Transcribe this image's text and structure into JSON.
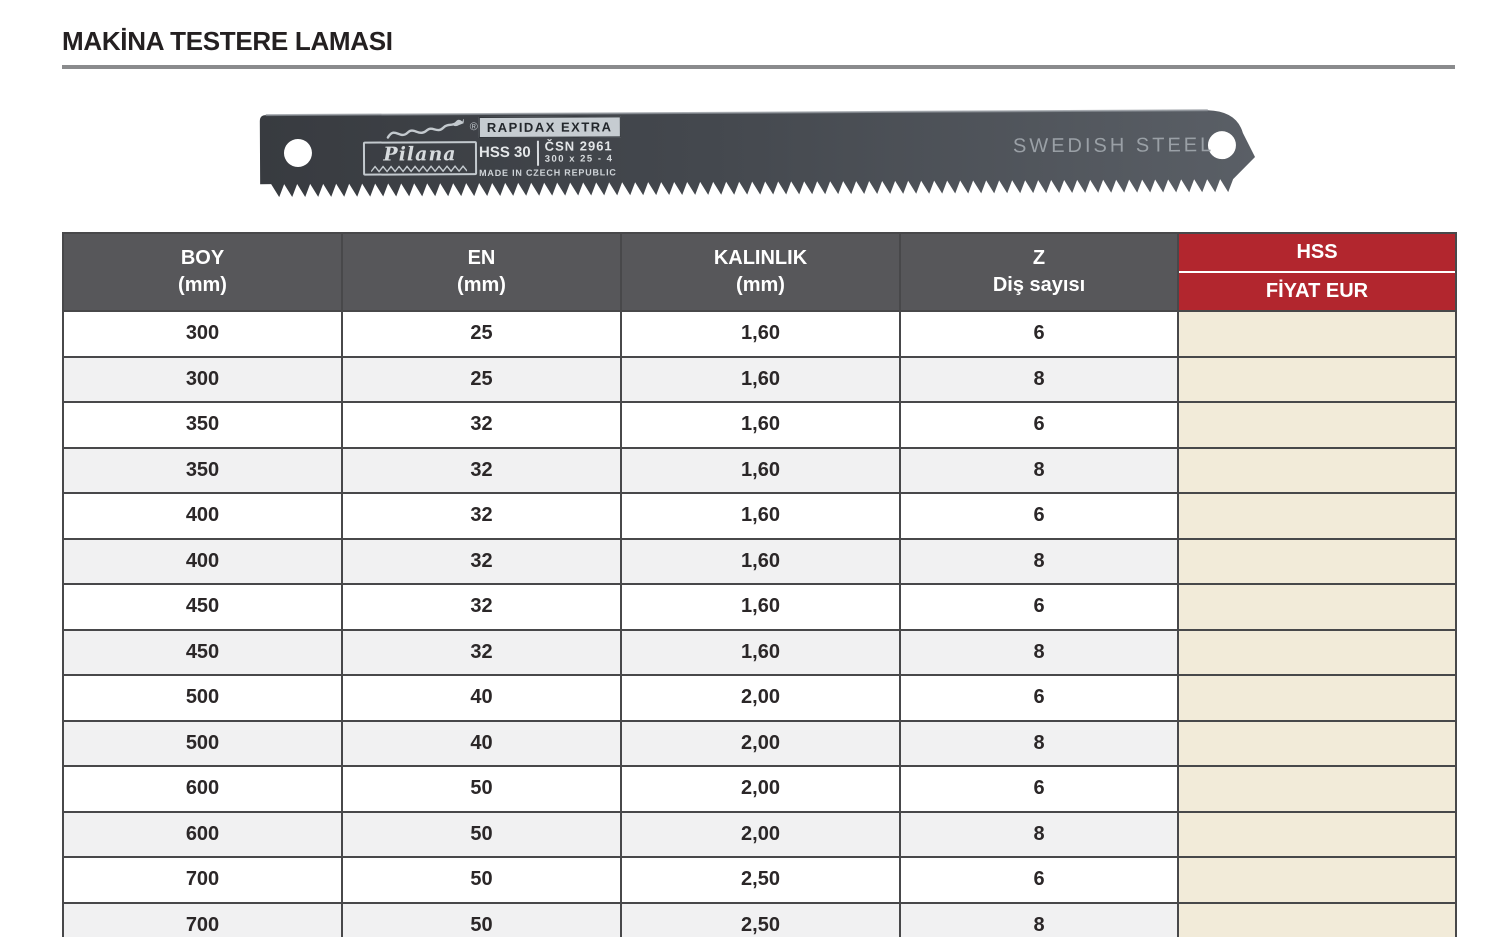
{
  "title": "MAKİNA TESTERE LAMASI",
  "blade": {
    "brand": "Pilana",
    "registered": "®",
    "series_label": "RAPIDAX EXTRA",
    "type_label": "HSS 30",
    "standard": "ČSN 2961",
    "dimensions": "300 x 25 - 4",
    "origin": "MADE IN CZECH REPUBLIC",
    "steel_label": "SWEDISH STEEL"
  },
  "table": {
    "columns": [
      {
        "line1": "BOY",
        "line2": "(mm)"
      },
      {
        "line1": "EN",
        "line2": "(mm)"
      },
      {
        "line1": "KALINLIK",
        "line2": "(mm)"
      },
      {
        "line1": "Z",
        "line2": "Diş sayısı"
      },
      {
        "line1": "HSS",
        "line2": "FİYAT EUR"
      }
    ],
    "rows": [
      [
        "300",
        "25",
        "1,60",
        "6",
        ""
      ],
      [
        "300",
        "25",
        "1,60",
        "8",
        ""
      ],
      [
        "350",
        "32",
        "1,60",
        "6",
        ""
      ],
      [
        "350",
        "32",
        "1,60",
        "8",
        ""
      ],
      [
        "400",
        "32",
        "1,60",
        "6",
        ""
      ],
      [
        "400",
        "32",
        "1,60",
        "8",
        ""
      ],
      [
        "450",
        "32",
        "1,60",
        "6",
        ""
      ],
      [
        "450",
        "32",
        "1,60",
        "8",
        ""
      ],
      [
        "500",
        "40",
        "2,00",
        "6",
        ""
      ],
      [
        "500",
        "40",
        "2,00",
        "8",
        ""
      ],
      [
        "600",
        "50",
        "2,00",
        "6",
        ""
      ],
      [
        "600",
        "50",
        "2,00",
        "8",
        ""
      ],
      [
        "700",
        "50",
        "2,50",
        "6",
        ""
      ],
      [
        "700",
        "50",
        "2,50",
        "8",
        ""
      ]
    ]
  },
  "colors": {
    "header_gray": "#57575a",
    "accent_red": "#b2262e",
    "price_cream": "#f2ebd9",
    "row_alt_gray": "#f1f1f2",
    "blade_dark": "#41454b",
    "title_rule_gray": "#8a8b8d"
  }
}
